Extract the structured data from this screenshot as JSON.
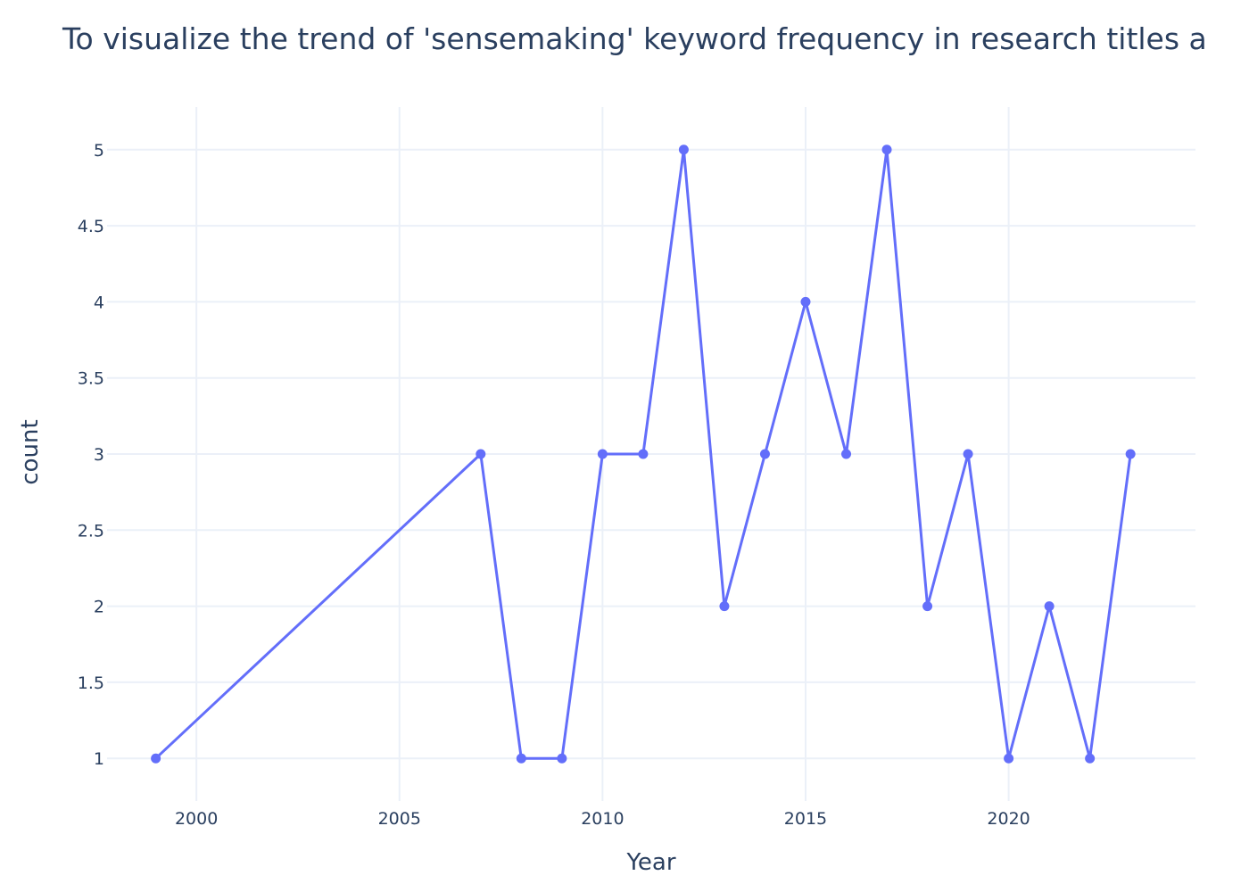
{
  "chart_data": {
    "type": "line",
    "title": "To visualize the trend of 'sensemaking' keyword frequency in research titles a",
    "xlabel": "Year",
    "ylabel": "count",
    "x": [
      1999,
      2007,
      2008,
      2009,
      2010,
      2011,
      2012,
      2013,
      2014,
      2015,
      2016,
      2017,
      2018,
      2019,
      2020,
      2021,
      2022,
      2023
    ],
    "series": [
      {
        "values": [
          1,
          3,
          1,
          1,
          3,
          3,
          5,
          2,
          3,
          4,
          3,
          5,
          2,
          3,
          1,
          2,
          1,
          3
        ]
      }
    ],
    "xlim": [
      1997.8,
      2024.6
    ],
    "ylim": [
      0.72,
      5.28
    ],
    "xticks": [
      2000,
      2005,
      2010,
      2015,
      2020
    ],
    "yticks": [
      1,
      1.5,
      2,
      2.5,
      3,
      3.5,
      4,
      4.5,
      5
    ],
    "xtick_labels": [
      "2000",
      "2005",
      "2010",
      "2015",
      "2020"
    ],
    "ytick_labels": [
      "1",
      "1.5",
      "2",
      "2.5",
      "3",
      "3.5",
      "4",
      "4.5",
      "5"
    ],
    "grid": true,
    "line_color": "#636efa",
    "grid_color": "#ebf0f8",
    "text_color": "#2a3f5f"
  }
}
